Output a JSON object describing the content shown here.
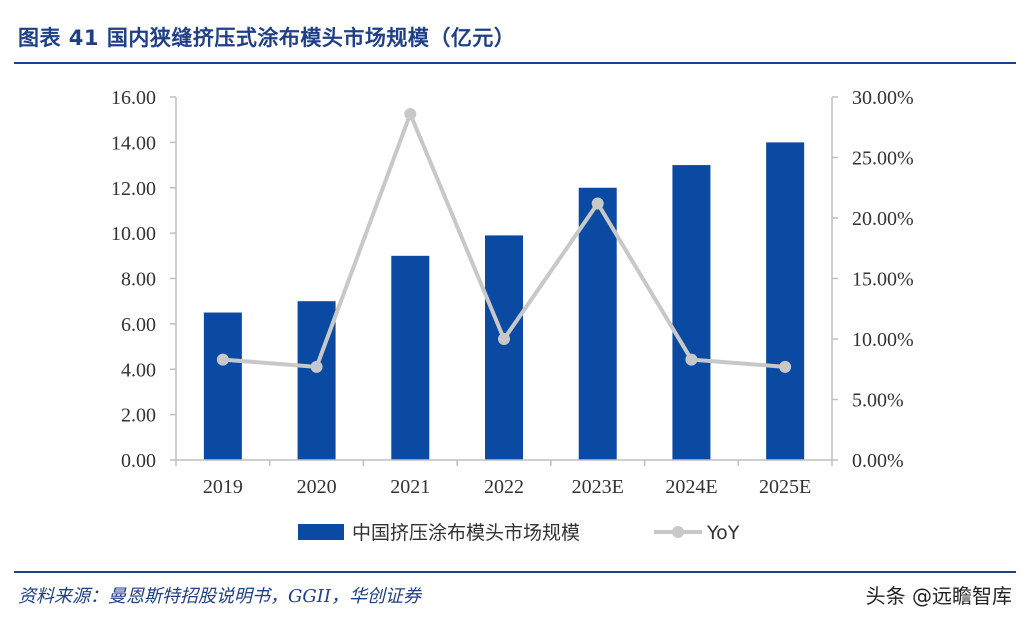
{
  "header": {
    "title": "图表  41    国内狭缝挤压式涂布模头市场规模（亿元）"
  },
  "footer": {
    "source": "资料来源：曼恩斯特招股说明书，GGII，华创证券",
    "watermark": "头条 @远瞻智库"
  },
  "colors": {
    "brand": "#1f3f87",
    "bar": "#0b4aa2",
    "line": "#c8c8c8",
    "axis": "#bfbfbf"
  },
  "chart_data": {
    "type": "bar",
    "categories": [
      "2019",
      "2020",
      "2021",
      "2022",
      "2023E",
      "2024E",
      "2025E"
    ],
    "series": [
      {
        "name": "中国挤压涂布模头市场规模",
        "type": "bar",
        "axis": "left",
        "values": [
          6.5,
          7.0,
          9.0,
          9.9,
          12.0,
          13.0,
          14.0
        ]
      },
      {
        "name": "YoY",
        "type": "line",
        "axis": "right",
        "values": [
          8.3,
          7.7,
          28.6,
          10.0,
          21.2,
          8.3,
          7.7
        ]
      }
    ],
    "left_axis": {
      "min": 0,
      "max": 16,
      "step": 2,
      "tick_labels": [
        "0.00",
        "2.00",
        "4.00",
        "6.00",
        "8.00",
        "10.00",
        "12.00",
        "14.00",
        "16.00"
      ]
    },
    "right_axis": {
      "min": 0,
      "max": 30,
      "step": 5,
      "tick_labels": [
        "0.00%",
        "5.00%",
        "10.00%",
        "15.00%",
        "20.00%",
        "25.00%",
        "30.00%"
      ]
    },
    "legend": [
      "中国挤压涂布模头市场规模",
      "YoY"
    ],
    "legend_position": "bottom",
    "grid": false
  }
}
